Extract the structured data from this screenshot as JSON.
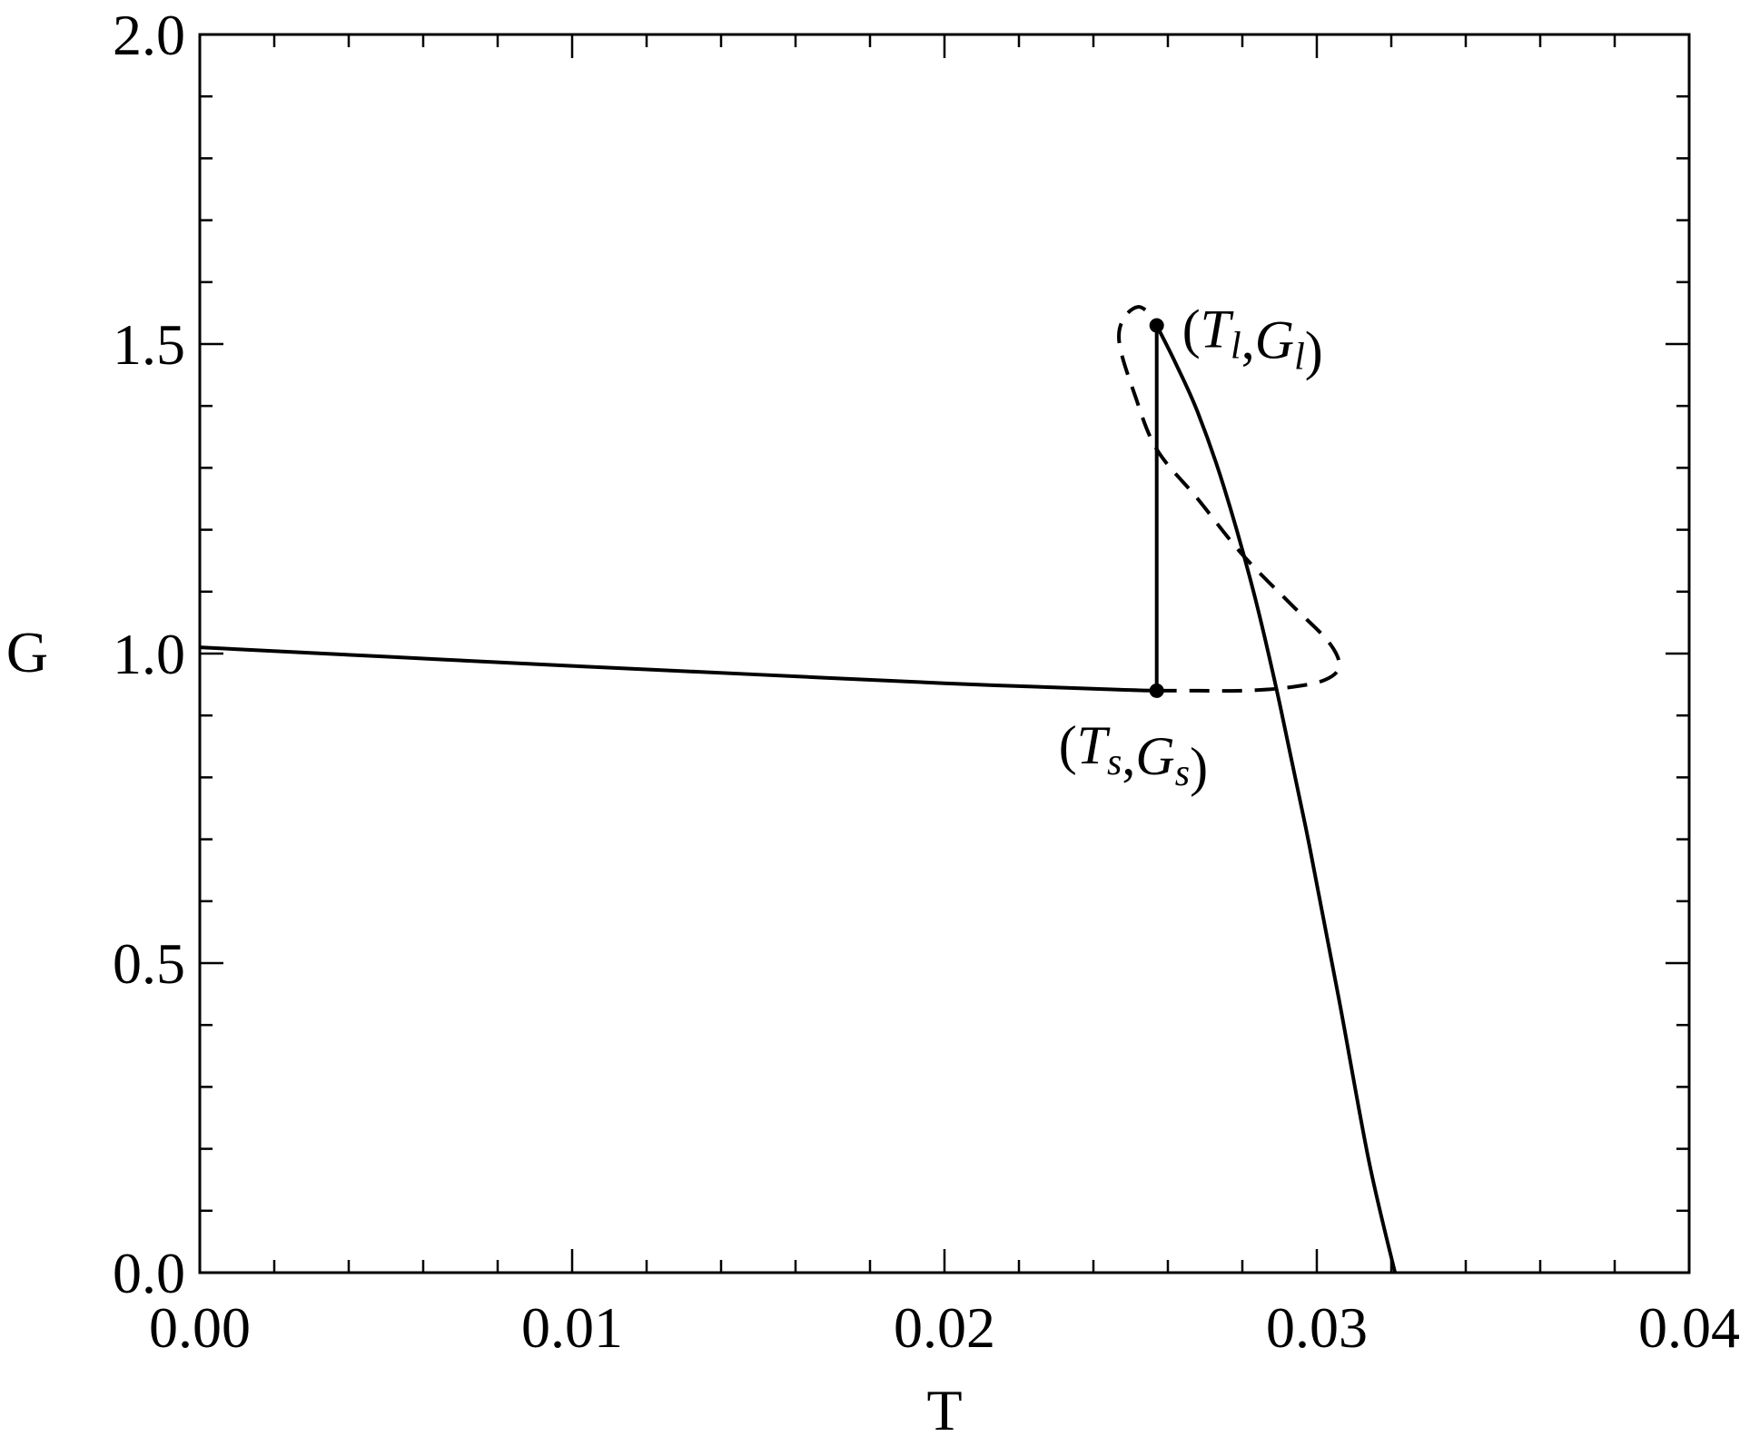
{
  "chart_data": {
    "type": "line",
    "title": "",
    "xlabel": "T",
    "ylabel": "G",
    "xlim": [
      0.0,
      0.04
    ],
    "ylim": [
      0.0,
      2.0
    ],
    "x_ticks": [
      0.0,
      0.01,
      0.02,
      0.03,
      0.04
    ],
    "x_tick_labels": [
      "0.00",
      "0.01",
      "0.02",
      "0.03",
      "0.04"
    ],
    "y_ticks": [
      0.0,
      0.5,
      1.0,
      1.5,
      2.0
    ],
    "y_tick_labels": [
      "0.0",
      "0.5",
      "1.0",
      "1.5",
      "2.0"
    ],
    "grid": false,
    "line_color": "#000000",
    "series": [
      {
        "style": "solid",
        "x": [
          0.0,
          0.005,
          0.01,
          0.015,
          0.02,
          0.0245,
          0.0257
        ],
        "y": [
          1.01,
          0.995,
          0.98,
          0.966,
          0.952,
          0.942,
          0.94
        ]
      },
      {
        "style": "solid",
        "x": [
          0.0257,
          0.0257
        ],
        "y": [
          0.94,
          1.53
        ]
      },
      {
        "style": "solid",
        "x": [
          0.0257,
          0.0262,
          0.0268,
          0.0275,
          0.0283,
          0.029,
          0.0298,
          0.0306,
          0.0314,
          0.0321
        ],
        "y": [
          1.53,
          1.47,
          1.39,
          1.27,
          1.1,
          0.92,
          0.69,
          0.44,
          0.18,
          0.0
        ]
      },
      {
        "style": "dashed",
        "x": [
          0.0257,
          0.0268,
          0.028,
          0.0292,
          0.0302,
          0.0306,
          0.0303,
          0.0293,
          0.028,
          0.0268,
          0.0257,
          0.0251,
          0.0247,
          0.0248,
          0.0252,
          0.0256
        ],
        "y": [
          0.94,
          0.94,
          0.94,
          0.945,
          0.957,
          0.98,
          1.02,
          1.08,
          1.16,
          1.25,
          1.33,
          1.42,
          1.5,
          1.54,
          1.56,
          1.545
        ]
      }
    ],
    "points": [
      {
        "x": 0.0257,
        "y": 1.53
      },
      {
        "x": 0.0257,
        "y": 0.94
      }
    ],
    "annotations": [
      {
        "text": "(Tl,Gl)",
        "x": 0.0257,
        "y": 1.53,
        "main_left": "T",
        "sub_left": "l",
        "main_right": "G",
        "sub_right": "l"
      },
      {
        "text": "(Ts,Gs)",
        "x": 0.0257,
        "y": 0.94,
        "main_left": "T",
        "sub_left": "s",
        "main_right": "G",
        "sub_right": "s"
      }
    ]
  }
}
